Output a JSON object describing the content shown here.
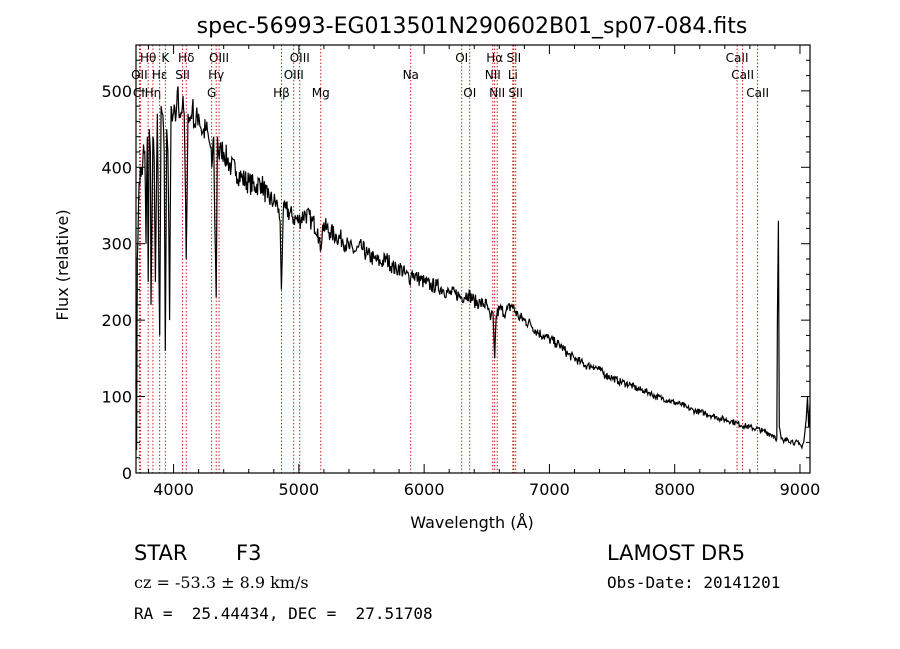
{
  "chart_data": {
    "type": "line",
    "title": "spec-56993-EG013501N290602B01_sp07-084.fits",
    "xlabel": "Wavelength (Å)",
    "ylabel": "Flux (relative)",
    "xlim": [
      3700,
      9080
    ],
    "ylim": [
      0,
      560
    ],
    "xticks": [
      4000,
      5000,
      6000,
      7000,
      8000,
      9000
    ],
    "yticks": [
      0,
      100,
      200,
      300,
      400,
      500
    ],
    "grid": false,
    "line_color": "#000000",
    "marker_color": "#cc0000",
    "series": [
      {
        "x": [
          3700,
          3705,
          3710,
          3720,
          3735,
          3750,
          3760,
          3770,
          3780,
          3790,
          3797,
          3805,
          3815,
          3820,
          3835,
          3845,
          3855,
          3870,
          3889,
          3900,
          3910,
          3925,
          3934,
          3945,
          3955,
          3968,
          3980,
          3990,
          4000,
          4015,
          4030,
          4050,
          4070,
          4085,
          4101,
          4115,
          4130,
          4150,
          4170,
          4200,
          4230,
          4260,
          4290,
          4305,
          4320,
          4330,
          4340,
          4350,
          4365,
          4380,
          4400,
          4430,
          4460,
          4500,
          4550,
          4600,
          4650,
          4700,
          4750,
          4800,
          4830,
          4850,
          4861,
          4875,
          4900,
          4950,
          5000,
          5050,
          5100,
          5150,
          5172,
          5190,
          5250,
          5300,
          5350,
          5400,
          5450,
          5500,
          5550,
          5600,
          5650,
          5700,
          5750,
          5780,
          5800,
          5850,
          5893,
          5900,
          5950,
          6000,
          6050,
          6100,
          6150,
          6200,
          6250,
          6300,
          6350,
          6400,
          6450,
          6500,
          6530,
          6550,
          6563,
          6575,
          6600,
          6650,
          6700,
          6750,
          6800,
          6850,
          6900,
          6950,
          7000,
          7050,
          7100,
          7150,
          7200,
          7250,
          7300,
          7350,
          7400,
          7450,
          7500,
          7550,
          7600,
          7650,
          7700,
          7750,
          7800,
          7850,
          7900,
          7950,
          8000,
          8050,
          8100,
          8150,
          8200,
          8250,
          8300,
          8350,
          8400,
          8450,
          8500,
          8550,
          8600,
          8650,
          8700,
          8750,
          8780,
          8800,
          8815,
          8820,
          8828,
          8835,
          8850,
          8870,
          8900,
          8930,
          8960,
          8990,
          9010,
          9030,
          9050,
          9060,
          9070,
          9080
        ],
        "values": [
          120,
          30,
          280,
          350,
          400,
          390,
          430,
          420,
          300,
          440,
          250,
          450,
          420,
          220,
          440,
          410,
          250,
          470,
          180,
          480,
          470,
          420,
          160,
          450,
          420,
          200,
          480,
          460,
          470,
          460,
          500,
          470,
          480,
          470,
          280,
          470,
          460,
          480,
          455,
          470,
          445,
          450,
          430,
          400,
          440,
          320,
          230,
          440,
          410,
          425,
          420,
          410,
          400,
          395,
          385,
          380,
          375,
          380,
          360,
          355,
          350,
          330,
          240,
          340,
          345,
          335,
          330,
          340,
          330,
          320,
          290,
          325,
          315,
          310,
          305,
          295,
          290,
          295,
          285,
          280,
          275,
          280,
          270,
          265,
          270,
          260,
          255,
          262,
          255,
          250,
          245,
          245,
          240,
          235,
          235,
          230,
          235,
          225,
          222,
          220,
          200,
          210,
          150,
          205,
          215,
          210,
          220,
          205,
          200,
          195,
          185,
          180,
          175,
          170,
          165,
          155,
          150,
          145,
          140,
          140,
          135,
          128,
          125,
          120,
          118,
          115,
          110,
          108,
          105,
          100,
          98,
          95,
          92,
          90,
          85,
          82,
          80,
          78,
          75,
          72,
          70,
          68,
          65,
          62,
          60,
          58,
          55,
          52,
          50,
          48,
          45,
          200,
          330,
          60,
          45,
          40,
          45,
          42,
          40,
          38,
          35,
          40,
          70,
          100,
          60,
          90
        ]
      }
    ],
    "markers": [
      {
        "label": "Hθ",
        "x": 3797,
        "row": 0
      },
      {
        "label": "OII",
        "x": 3727,
        "row": 1
      },
      {
        "label": "CII",
        "x": 3737,
        "row": 2
      },
      {
        "label": "Hη",
        "x": 3835,
        "row": 2
      },
      {
        "label": "K",
        "x": 3934,
        "row": 0
      },
      {
        "label": "Hε",
        "x": 3889,
        "row": 1
      },
      {
        "label": "SII",
        "x": 4072,
        "row": 1
      },
      {
        "label": "Hδ",
        "x": 4101,
        "row": 0
      },
      {
        "label": "OIII",
        "x": 4363,
        "row": 0
      },
      {
        "label": "Hγ",
        "x": 4340,
        "row": 1
      },
      {
        "label": "G",
        "x": 4304,
        "row": 2
      },
      {
        "label": "OIII",
        "x": 5007,
        "row": 0
      },
      {
        "label": "OIII",
        "x": 4959,
        "row": 1
      },
      {
        "label": "Hβ",
        "x": 4861,
        "row": 2
      },
      {
        "label": "Mg",
        "x": 5175,
        "row": 2
      },
      {
        "label": "Na",
        "x": 5893,
        "row": 1
      },
      {
        "label": "OI",
        "x": 6300,
        "row": 0
      },
      {
        "label": "OI",
        "x": 6364,
        "row": 2
      },
      {
        "label": "Hα",
        "x": 6563,
        "row": 0
      },
      {
        "label": "SII",
        "x": 6716,
        "row": 0
      },
      {
        "label": "NII",
        "x": 6548,
        "row": 1
      },
      {
        "label": "Li",
        "x": 6708,
        "row": 1
      },
      {
        "label": "NII",
        "x": 6583,
        "row": 2
      },
      {
        "label": "SII",
        "x": 6731,
        "row": 2
      },
      {
        "label": "CaII",
        "x": 8498,
        "row": 0
      },
      {
        "label": "CaII",
        "x": 8542,
        "row": 1
      },
      {
        "label": "CaII",
        "x": 8662,
        "row": 2
      }
    ]
  },
  "info": {
    "object_class": "STAR",
    "subclass": "F3",
    "survey": "LAMOST DR5",
    "redshift": "cz = -53.3 ± 8.9 km/s",
    "obs_date": "Obs-Date: 20141201",
    "coords": "RA =  25.44434, DEC =  27.51708"
  }
}
